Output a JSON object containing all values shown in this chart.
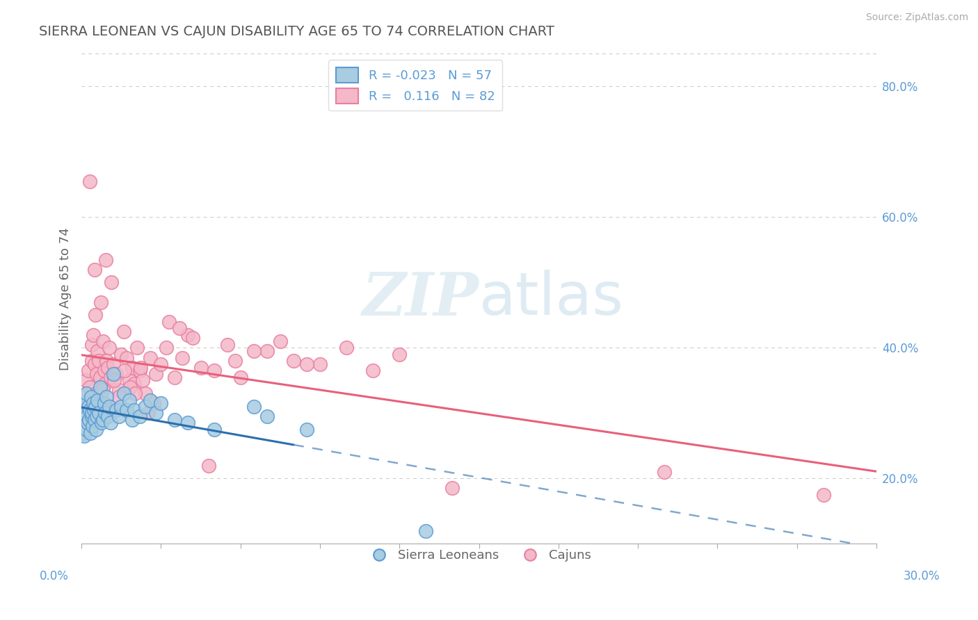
{
  "title": "SIERRA LEONEAN VS CAJUN DISABILITY AGE 65 TO 74 CORRELATION CHART",
  "source": "Source: ZipAtlas.com",
  "ylabel": "Disability Age 65 to 74",
  "xlim": [
    0.0,
    30.0
  ],
  "ylim": [
    10.0,
    85.0
  ],
  "yticks": [
    20.0,
    40.0,
    60.0,
    80.0
  ],
  "xticks": [
    0.0,
    3.0,
    6.0,
    9.0,
    12.0,
    15.0,
    18.0,
    21.0,
    24.0,
    27.0,
    30.0
  ],
  "blue_R": -0.023,
  "blue_N": 57,
  "pink_R": 0.116,
  "pink_N": 82,
  "blue_color": "#a8cce0",
  "pink_color": "#f4b8c8",
  "blue_edge_color": "#5b9bd5",
  "pink_edge_color": "#e87fa0",
  "blue_line_color": "#2c6fad",
  "pink_line_color": "#e8607a",
  "bg_color": "#ffffff",
  "grid_color": "#c8c8c8",
  "title_color": "#555555",
  "axis_label_color": "#5b9bd5",
  "legend_label_blue": "Sierra Leoneans",
  "legend_label_pink": "Cajuns",
  "blue_solid_end_x": 8.0,
  "blue_scatter_x": [
    0.05,
    0.07,
    0.08,
    0.1,
    0.12,
    0.13,
    0.15,
    0.17,
    0.18,
    0.2,
    0.22,
    0.25,
    0.28,
    0.3,
    0.33,
    0.35,
    0.38,
    0.4,
    0.42,
    0.45,
    0.48,
    0.5,
    0.53,
    0.55,
    0.58,
    0.6,
    0.65,
    0.7,
    0.75,
    0.8,
    0.85,
    0.9,
    0.95,
    1.0,
    1.05,
    1.1,
    1.2,
    1.3,
    1.4,
    1.5,
    1.6,
    1.7,
    1.8,
    1.9,
    2.0,
    2.2,
    2.4,
    2.6,
    2.8,
    3.0,
    3.5,
    4.0,
    5.0,
    6.5,
    7.0,
    8.5,
    13.0
  ],
  "blue_scatter_y": [
    29.0,
    27.0,
    30.5,
    26.5,
    28.0,
    31.5,
    30.0,
    27.5,
    33.0,
    29.5,
    28.5,
    31.0,
    29.0,
    30.5,
    27.0,
    32.5,
    29.5,
    30.0,
    28.0,
    31.5,
    30.5,
    29.0,
    31.0,
    27.5,
    29.5,
    32.0,
    30.0,
    34.0,
    28.5,
    29.0,
    31.5,
    30.0,
    32.5,
    29.5,
    31.0,
    28.5,
    36.0,
    30.5,
    29.5,
    31.0,
    33.0,
    30.5,
    32.0,
    29.0,
    30.5,
    29.5,
    31.0,
    32.0,
    30.0,
    31.5,
    29.0,
    28.5,
    27.5,
    31.0,
    29.5,
    27.5,
    12.0
  ],
  "pink_scatter_x": [
    0.1,
    0.15,
    0.2,
    0.25,
    0.3,
    0.35,
    0.38,
    0.4,
    0.45,
    0.5,
    0.55,
    0.58,
    0.6,
    0.65,
    0.7,
    0.75,
    0.8,
    0.85,
    0.9,
    0.95,
    1.0,
    1.05,
    1.1,
    1.2,
    1.3,
    1.4,
    1.5,
    1.6,
    1.7,
    1.8,
    1.9,
    2.0,
    2.1,
    2.2,
    2.3,
    2.4,
    2.6,
    2.8,
    3.0,
    3.2,
    3.5,
    3.8,
    4.0,
    4.5,
    5.0,
    5.5,
    6.0,
    7.0,
    8.0,
    9.0,
    10.0,
    11.0,
    12.0,
    3.3,
    3.7,
    4.2,
    5.8,
    6.5,
    7.5,
    8.5,
    0.42,
    0.62,
    0.82,
    1.02,
    1.22,
    1.42,
    1.62,
    1.82,
    2.02,
    2.22,
    2.52,
    2.72,
    1.12,
    0.92,
    0.72,
    0.52,
    4.8,
    14.0,
    22.0,
    28.0,
    0.3,
    0.5
  ],
  "pink_scatter_y": [
    32.5,
    35.0,
    29.5,
    36.5,
    34.0,
    30.0,
    38.0,
    40.5,
    42.0,
    37.5,
    33.0,
    36.0,
    39.5,
    38.0,
    35.5,
    31.5,
    41.0,
    36.5,
    34.5,
    38.0,
    37.0,
    40.0,
    35.5,
    37.5,
    36.0,
    33.5,
    39.0,
    42.5,
    38.5,
    35.0,
    37.0,
    34.5,
    40.0,
    36.5,
    35.0,
    33.0,
    38.5,
    36.0,
    37.5,
    40.0,
    35.5,
    38.5,
    42.0,
    37.0,
    36.5,
    40.5,
    35.5,
    39.5,
    38.0,
    37.5,
    40.0,
    36.5,
    39.0,
    44.0,
    43.0,
    41.5,
    38.0,
    39.5,
    41.0,
    37.5,
    32.0,
    31.0,
    33.5,
    30.5,
    35.0,
    32.5,
    36.5,
    34.0,
    33.0,
    37.0,
    30.0,
    31.5,
    50.0,
    53.5,
    47.0,
    45.0,
    22.0,
    18.5,
    21.0,
    17.5,
    65.5,
    52.0
  ]
}
